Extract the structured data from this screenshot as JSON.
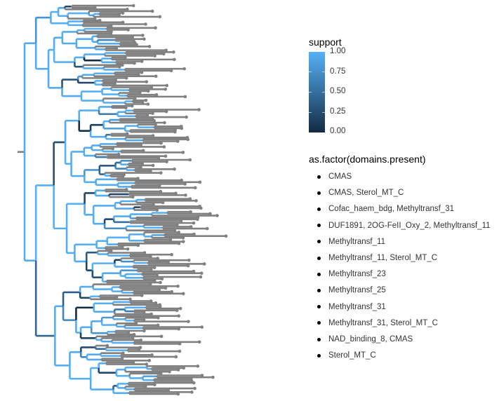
{
  "chart_data": {
    "type": "tree",
    "description_type": "rectangular phylogenetic tree",
    "tip_color": "#808080",
    "branch_color_scale": {
      "low": "#132B43",
      "high": "#56B1F7"
    },
    "legend_support": {
      "title": "support",
      "range": [
        0,
        1
      ],
      "ticks": [
        "1.00",
        "0.75",
        "0.50",
        "0.25",
        "0.00"
      ]
    },
    "legend_domains": {
      "title": "as.factor(domains.present)",
      "items": [
        "CMAS",
        "CMAS, Sterol_MT_C",
        "Cofac_haem_bdg, Methyltransf_31",
        "DUF1891, 2OG-FeII_Oxy_2, Methyltransf_11",
        "Methyltransf_11",
        "Methyltransf_11, Sterol_MT_C",
        "Methyltransf_23",
        "Methyltransf_25",
        "Methyltransf_31",
        "Methyltransf_31, Sterol_MT_C",
        "NAD_binding_8, CMAS",
        "Sterol_MT_C"
      ]
    }
  }
}
